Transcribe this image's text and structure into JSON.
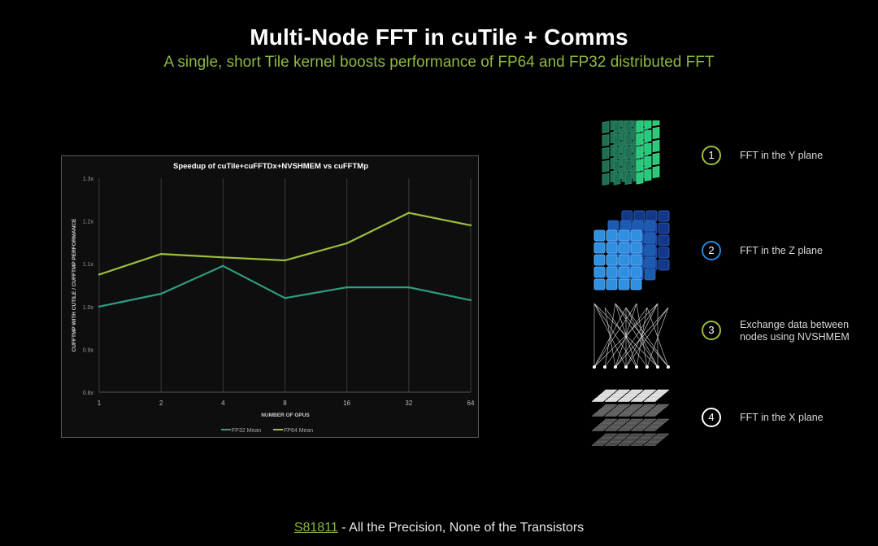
{
  "header": {
    "title": "Multi-Node FFT in cuTile + Comms",
    "subtitle": "A single, short Tile kernel boosts performance of FP64 and FP32 distributed FFT"
  },
  "chart_data": {
    "type": "line",
    "title": "Speedup of cuTile+cuFFTDx+NVSHMEM vs cuFFTMp",
    "xlabel": "NUMBER OF GPUS",
    "ylabel": "CUFFTMP WITH CUTILE / CUFFTMP PERFORMANCE",
    "categories": [
      "1",
      "2",
      "4",
      "8",
      "16",
      "32",
      "64"
    ],
    "ylim": [
      0.8,
      1.3
    ],
    "yticks": [
      "0.8x",
      "0.9x",
      "1.0x",
      "1.1x",
      "1.2x",
      "1.3x"
    ],
    "ytick_values": [
      0.8,
      0.9,
      1.0,
      1.1,
      1.2,
      1.3
    ],
    "grid": "vertical",
    "legend_position": "bottom",
    "series": [
      {
        "name": "FP32 Mean",
        "color": "#2e9e80",
        "values": [
          1.0,
          1.03,
          1.095,
          1.02,
          1.045,
          1.045,
          1.015
        ]
      },
      {
        "name": "FP64 Mean",
        "color": "#9cbf3c",
        "values": [
          1.075,
          1.123,
          1.115,
          1.108,
          1.148,
          1.219,
          1.19
        ]
      }
    ]
  },
  "steps": [
    {
      "number": "1",
      "label": "FFT in the Y plane",
      "color": "#9cbf3c",
      "icon": "y-plane-grid-icon"
    },
    {
      "number": "2",
      "label": "FFT in the Z plane",
      "color": "#2a86d8",
      "icon": "z-plane-grid-icon"
    },
    {
      "number": "3",
      "label": "Exchange data between nodes using NVSHMEM",
      "color": "#9cbf3c",
      "icon": "network-exchange-icon"
    },
    {
      "number": "4",
      "label": "FFT in the X plane",
      "color": "#ffffff",
      "icon": "x-plane-layers-icon"
    }
  ],
  "footer": {
    "code": "S81811",
    "text": " - All the Precision, None of the Transistors"
  }
}
